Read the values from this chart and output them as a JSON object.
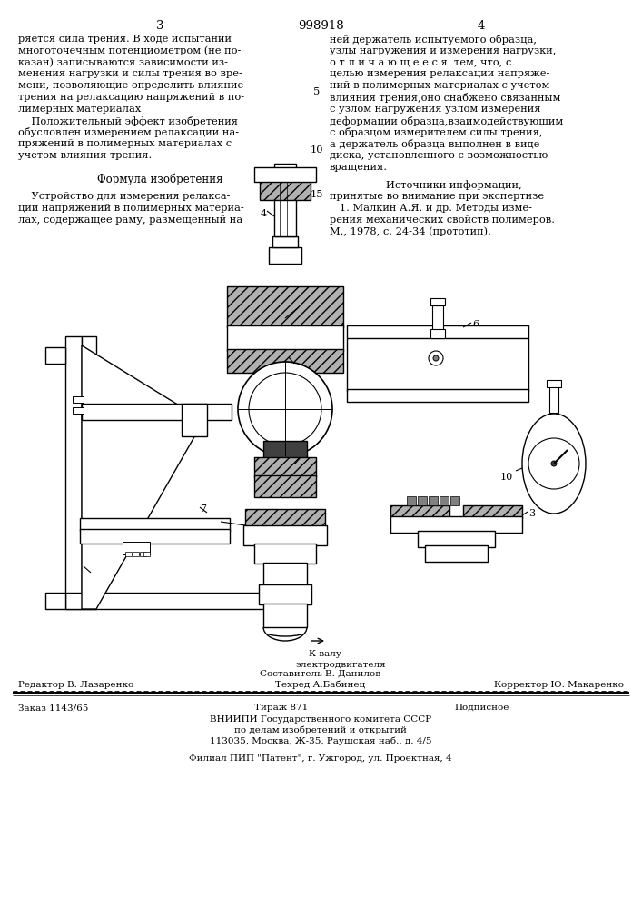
{
  "bg_color": "#ffffff",
  "page_number_left": "3",
  "page_number_center": "998918",
  "page_number_right": "4",
  "col1_lines": [
    "ряется сила трения. В ходе испытаний",
    "многоточечным потенциометром (не по-",
    "казан) записываются зависимости из-",
    "менения нагрузки и силы трения во вре-",
    "мени, позволяющие определить влияние",
    "трения на релаксацию напряжений в по-",
    "лимерных материалах",
    "    Положительный эффект изобретения",
    "обусловлен измерением релаксации на-",
    "пряжений в полимерных материалах с",
    "учетом влияния трения."
  ],
  "col2_lines": [
    "ней держатель испытуемого образца,",
    "узлы нагружения и измерения нагрузки,",
    "о т л и ч а ю щ е е с я  тем, что, с",
    "целью измерения релаксации напряже-",
    "ний в полимерных материалах с учетом",
    "влияния трения,оно снабжено связанным",
    "с узлом нагружения узлом измерения",
    "деформации образца,взаимодействующим",
    "с образцом измерителем силы трения,",
    "а держатель образца выполнен в виде",
    "диска, установленного с возможностью",
    "вращения."
  ],
  "formula_title": "Формула изобретения",
  "formula_lines": [
    "    Устройство для измерения релакса-",
    "ции напряжений в полимерных материа-",
    "лах, содержащее раму, размещенный на"
  ],
  "sources_title": "Источники информации,",
  "sources_lines": [
    "принятые во внимание при экспертизе",
    "   1. Малкин А.Я. и др. Методы изме-",
    "рения механических свойств полимеров.",
    "М., 1978, с. 24-34 (прототип)."
  ],
  "footer_line1_left": "Редактор В. Лазаренко",
  "footer_line1_center": "Составитель В. Данилов",
  "footer_line1_right": "Корректор Ю. Макаренко",
  "footer_line2_center": "Техред А.Бабинец",
  "footer_line3_left": "Заказ 1143/65",
  "footer_line3_center": "Тираж 871",
  "footer_line3_right": "Подписное",
  "footer_line4": "ВНИИПИ Государственного комитета СССР",
  "footer_line5": "по делам изобретений и открытий",
  "footer_line6": "113035, Москва, Ж-35, Раушская наб., д. 4/5",
  "footer_line7": "Филиал ПИП \"Патент\", г. Ужгород, ул. Проектная, 4"
}
